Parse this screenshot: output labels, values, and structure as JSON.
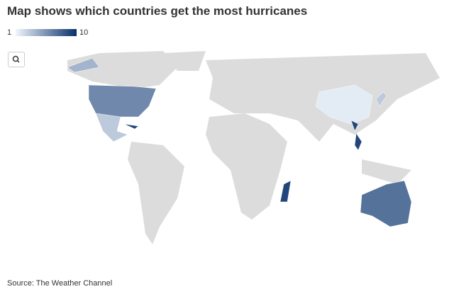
{
  "title": "Map shows which countries get the most hurricanes",
  "legend": {
    "min": 1,
    "max": 10,
    "colors": [
      "#f0f6fc",
      "#08306b"
    ]
  },
  "land_color": "#dcdcdc",
  "shaded_values": [
    6,
    4,
    3,
    9,
    1.5,
    3,
    9,
    7,
    9
  ],
  "source": "Source: The Weather Channel"
}
